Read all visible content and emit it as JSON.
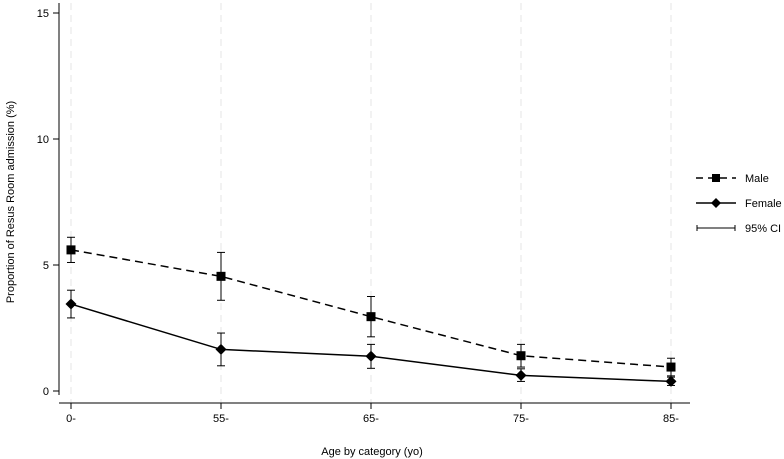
{
  "chart_data": {
    "type": "line",
    "title": "",
    "xlabel": "Age by category (yo)",
    "ylabel": "Proportion of Resus Room admission (%)",
    "categories": [
      "0-",
      "55-",
      "65-",
      "75-",
      "85-"
    ],
    "ylim": [
      0,
      15
    ],
    "yticks": [
      "0",
      "5",
      "10",
      "15"
    ],
    "grid": "vertical dashed",
    "legend_position": "right",
    "ci_label": "95% CI",
    "series": [
      {
        "name": "Male",
        "style": "dashed",
        "marker": "square",
        "values": [
          5.6,
          4.55,
          2.95,
          1.4,
          0.95
        ],
        "ci_low": [
          5.1,
          3.6,
          2.15,
          0.95,
          0.6
        ],
        "ci_high": [
          6.1,
          5.5,
          3.75,
          1.85,
          1.3
        ]
      },
      {
        "name": "Female",
        "style": "solid",
        "marker": "diamond",
        "values": [
          3.45,
          1.65,
          1.38,
          0.62,
          0.38
        ],
        "ci_low": [
          2.9,
          1.0,
          0.9,
          0.38,
          0.22
        ],
        "ci_high": [
          4.0,
          2.3,
          1.85,
          0.88,
          0.55
        ]
      }
    ]
  }
}
